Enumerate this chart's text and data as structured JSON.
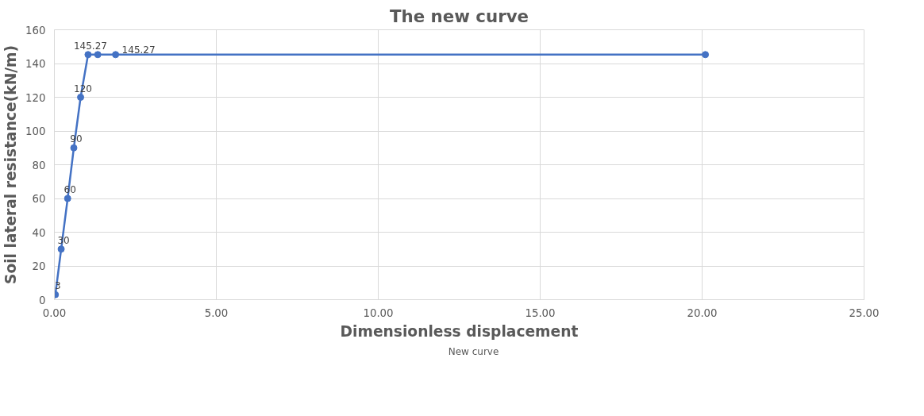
{
  "chart_data": {
    "type": "line",
    "title": "The new curve",
    "xlabel": "Dimensionless displacement",
    "ylabel": "Soil lateral resistance(kN/m)",
    "x": [
      0.03,
      0.21,
      0.41,
      0.6,
      0.81,
      1.04,
      1.34,
      1.89,
      20.1
    ],
    "series": [
      {
        "name": "New curve",
        "color": "#4472c4",
        "values": [
          3,
          30,
          60,
          90,
          120,
          145.27,
          145.27,
          145.27,
          145.27
        ],
        "value_labels": [
          "3",
          "30",
          "60",
          "90",
          "120",
          "145.27",
          null,
          "145.27",
          null
        ]
      }
    ],
    "xlim": [
      0,
      25
    ],
    "xticks": [
      {
        "value": 0,
        "label": "0.00"
      },
      {
        "value": 5,
        "label": "5.00"
      },
      {
        "value": 10,
        "label": "10.00"
      },
      {
        "value": 15,
        "label": "15.00"
      },
      {
        "value": 20,
        "label": "20.00"
      },
      {
        "value": 25,
        "label": "25.00"
      }
    ],
    "ylim": [
      0,
      160
    ],
    "yticks": [
      0,
      20,
      40,
      60,
      80,
      100,
      120,
      140,
      160
    ],
    "grid": true,
    "legend": "bottom",
    "marker": "circle",
    "line_style": "solid"
  }
}
